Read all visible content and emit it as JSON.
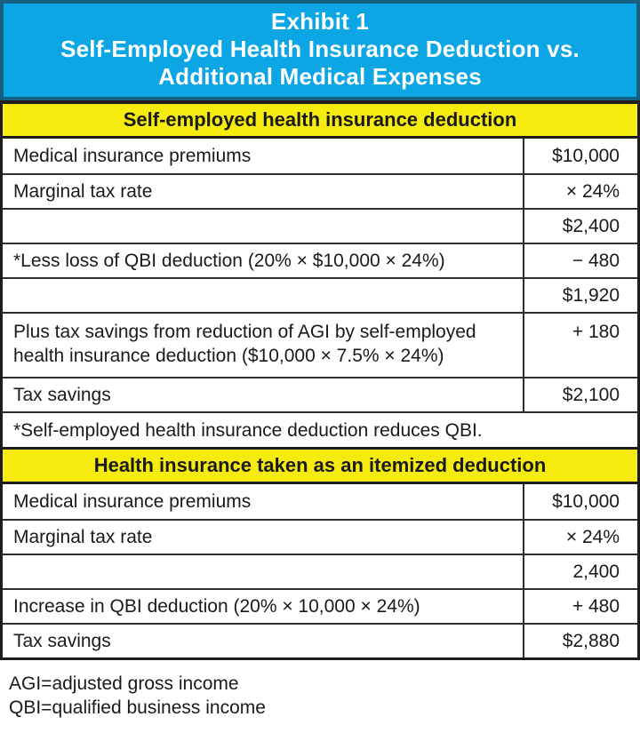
{
  "title": {
    "line1": "Exhibit 1",
    "line2": "Self-Employed Health Insurance Deduction vs.",
    "line3": "Additional Medical Expenses"
  },
  "sections": [
    {
      "header": "Self-employed health insurance deduction",
      "rows": [
        {
          "label": "Medical insurance premiums",
          "value": "$10,000"
        },
        {
          "label": "Marginal tax rate",
          "value": "× 24%"
        },
        {
          "label": "",
          "value": "$2,400"
        },
        {
          "label": "*Less loss of QBI deduction (20% × $10,000 × 24%)",
          "value": "− 480"
        },
        {
          "label": "",
          "value": "$1,920"
        },
        {
          "label": "Plus tax savings from reduction of AGI by self-employed health insurance deduction ($10,000 × 7.5% × 24%)",
          "value": "+ 180"
        },
        {
          "label": "Tax savings",
          "value": "$2,100"
        }
      ],
      "footnote": "*Self-employed health insurance deduction reduces QBI."
    },
    {
      "header": "Health insurance taken as an itemized deduction",
      "rows": [
        {
          "label": "Medical insurance premiums",
          "value": "$10,000"
        },
        {
          "label": "Marginal tax rate",
          "value": "× 24%"
        },
        {
          "label": "",
          "value": "2,400"
        },
        {
          "label": "Increase in QBI deduction (20% × 10,000 × 24%)",
          "value": "+ 480"
        },
        {
          "label": "Tax savings",
          "value": "$2,880"
        }
      ]
    }
  ],
  "legend": [
    "AGI=adjusted gross income",
    "QBI=qualified business income"
  ],
  "colors": {
    "header_bg": "#0CA6E4",
    "header_border": "#175F7F",
    "header_text": "#FFFFFF",
    "band_bg": "#F6EB0E",
    "border_strong": "#1C1C1C",
    "border_line": "#2E2E2E",
    "text": "#1A1A1A",
    "page_bg": "#FFFFFF"
  }
}
